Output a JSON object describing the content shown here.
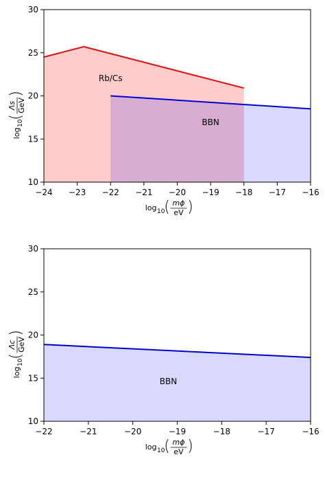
{
  "chart_data": [
    {
      "type": "area",
      "xlim": [
        -24,
        -16
      ],
      "ylim": [
        10,
        30
      ],
      "x_ticks": [
        -24,
        -23,
        -22,
        -21,
        -20,
        -19,
        -18,
        -17,
        -16
      ],
      "y_ticks": [
        10,
        15,
        20,
        25,
        30
      ],
      "x_tick_labels": [
        "−24",
        "−23",
        "−22",
        "−21",
        "−20",
        "−19",
        "−18",
        "−17",
        "−16"
      ],
      "y_tick_labels": [
        "10",
        "15",
        "20",
        "25",
        "30"
      ],
      "xlabel": {
        "prefix": "log",
        "sub": "10",
        "num": "mϕ",
        "den": "eV"
      },
      "ylabel": {
        "prefix": "log",
        "sub": "10",
        "num": "Λs",
        "den": "GeV"
      },
      "grid": false,
      "series": [
        {
          "label": "Rb/Cs",
          "color": "#dd1111",
          "fill": "#ff000033",
          "x": [
            -24,
            -22.8,
            -18
          ],
          "y": [
            24.5,
            25.7,
            20.9
          ],
          "label_at": [
            -22,
            21.7
          ]
        },
        {
          "label": "BBN",
          "color": "#0000cc",
          "fill": "#0000ff26",
          "x": [
            -22,
            -16
          ],
          "y": [
            20.0,
            18.5
          ],
          "label_at": [
            -19,
            16.6
          ]
        }
      ]
    },
    {
      "type": "area",
      "xlim": [
        -22,
        -16
      ],
      "ylim": [
        10,
        30
      ],
      "x_ticks": [
        -22,
        -21,
        -20,
        -19,
        -18,
        -17,
        -16
      ],
      "y_ticks": [
        10,
        15,
        20,
        25,
        30
      ],
      "x_tick_labels": [
        "−22",
        "−21",
        "−20",
        "−19",
        "−18",
        "−17",
        "−16"
      ],
      "y_tick_labels": [
        "10",
        "15",
        "20",
        "25",
        "30"
      ],
      "xlabel": {
        "prefix": "log",
        "sub": "10",
        "num": "mϕ",
        "den": "eV"
      },
      "ylabel": {
        "prefix": "log",
        "sub": "10",
        "num": "Λc",
        "den": "GeV"
      },
      "grid": false,
      "series": [
        {
          "label": "BBN",
          "color": "#0000cc",
          "fill": "#0000ff26",
          "x": [
            -22,
            -16
          ],
          "y": [
            18.9,
            17.4
          ],
          "label_at": [
            -19.2,
            14.3
          ]
        }
      ]
    }
  ]
}
